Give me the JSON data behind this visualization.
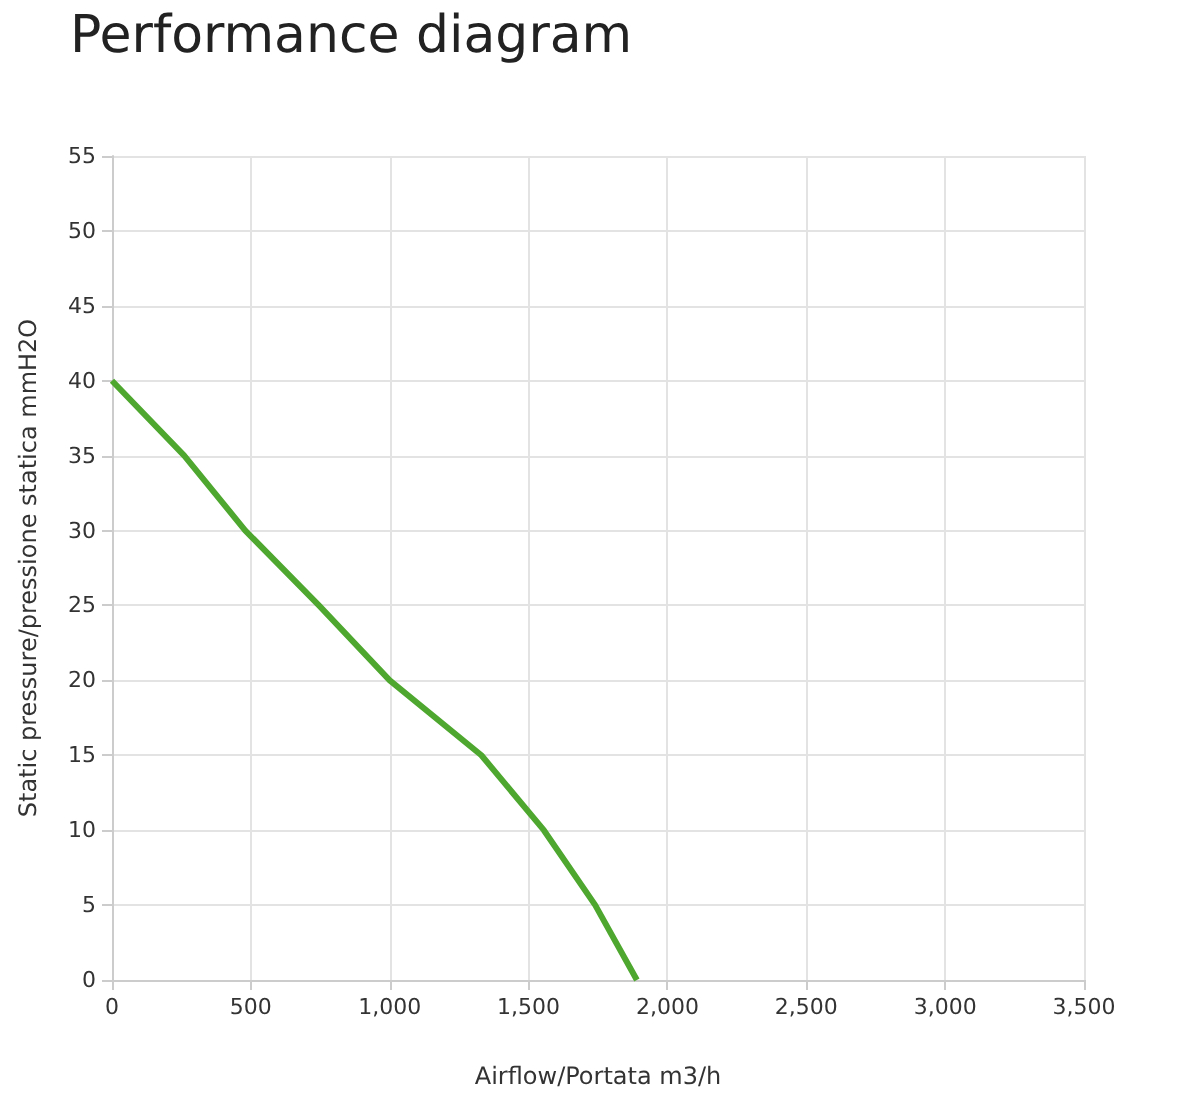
{
  "chart_data": {
    "type": "line",
    "title": "Performance diagram",
    "xlabel": "Airflow/Portata m3/h",
    "ylabel": "Static pressure/pressione statica mmH2O",
    "x": [
      0,
      260,
      480,
      745,
      1000,
      1330,
      1555,
      1740,
      1890
    ],
    "series": [
      {
        "color": "#4ea72e",
        "values": [
          40,
          35,
          30,
          25,
          20,
          15,
          10,
          5,
          0
        ]
      }
    ],
    "xlim": [
      0,
      3500
    ],
    "xticks": [
      {
        "value": 0,
        "label": "0"
      },
      {
        "value": 500,
        "label": "500"
      },
      {
        "value": 1000,
        "label": "1,000"
      },
      {
        "value": 1500,
        "label": "1,500"
      },
      {
        "value": 2000,
        "label": "2,000"
      },
      {
        "value": 2500,
        "label": "2,500"
      },
      {
        "value": 3000,
        "label": "3,000"
      },
      {
        "value": 3500,
        "label": "3,500"
      }
    ],
    "ylim": [
      0,
      55
    ],
    "yticks": [
      0,
      5,
      10,
      15,
      20,
      25,
      30,
      35,
      40,
      45,
      50,
      55
    ],
    "grid": true,
    "marker": "none",
    "line_style": "solid"
  }
}
